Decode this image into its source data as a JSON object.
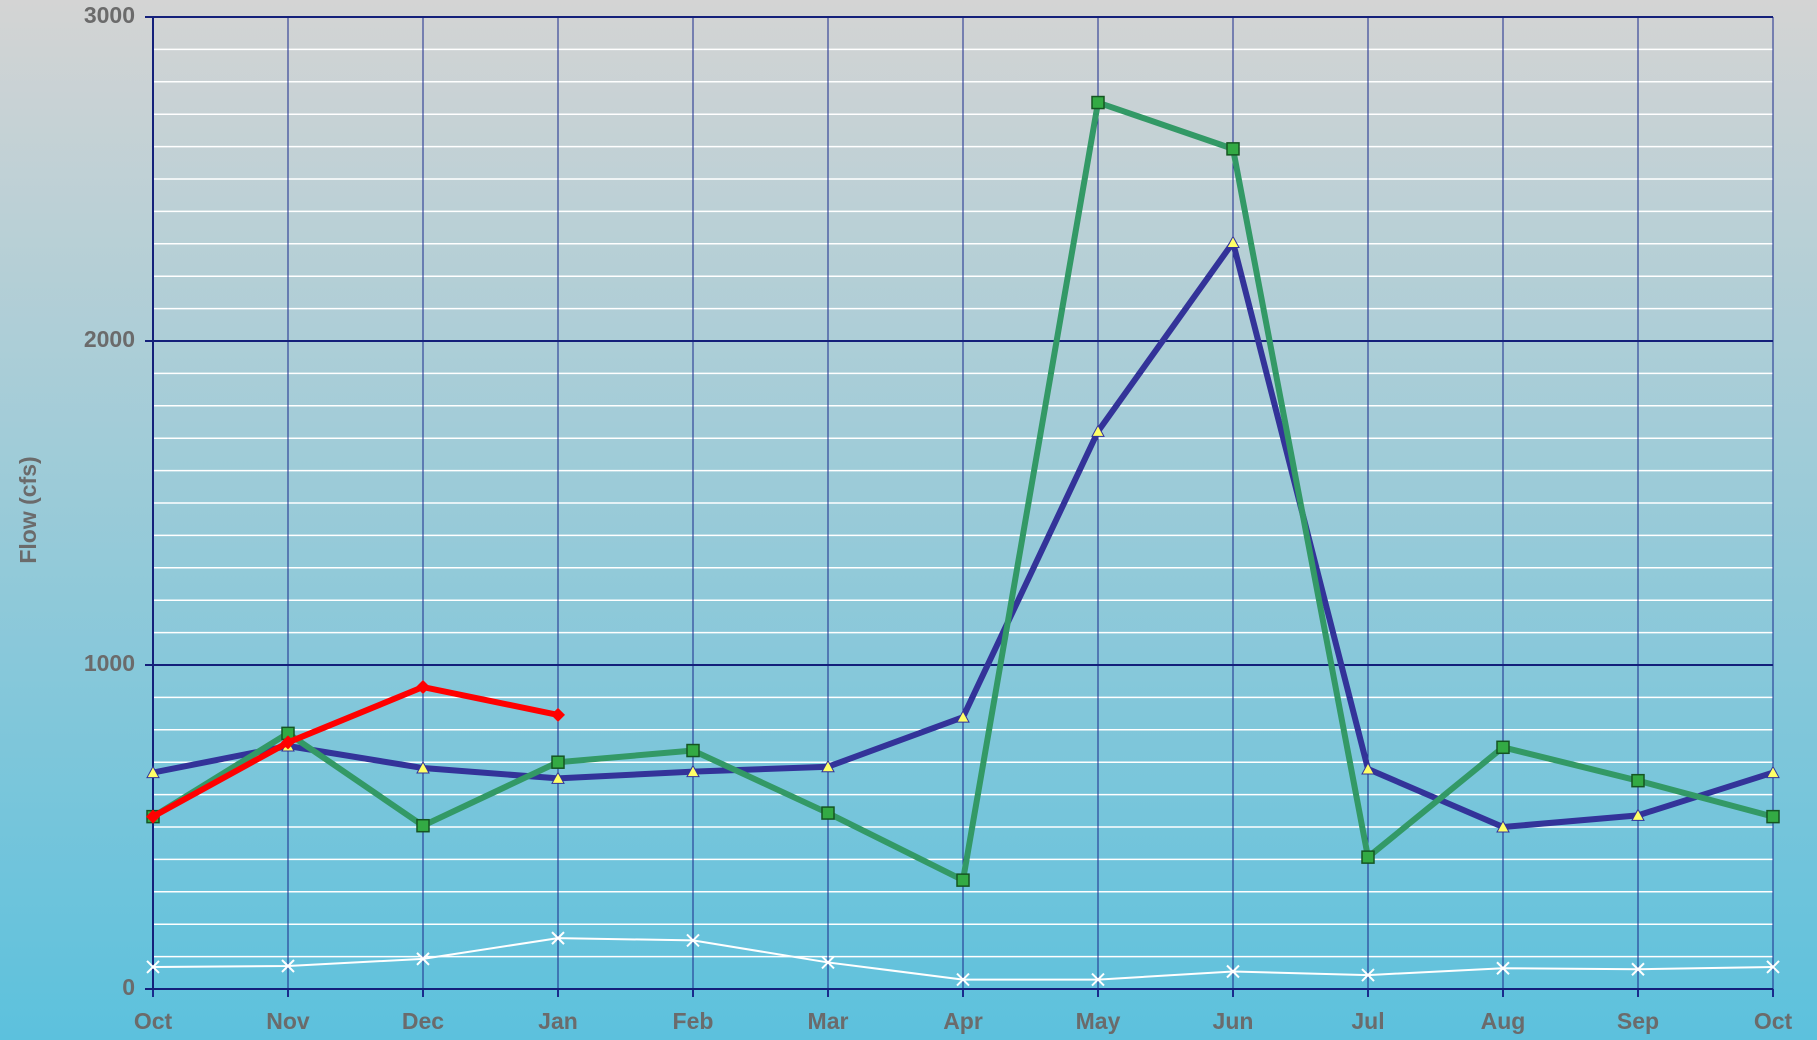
{
  "chart_data": {
    "type": "line",
    "y_label": "Flow (cfs)",
    "categories": [
      "Oct",
      "Nov",
      "Dec",
      "Jan",
      "Feb",
      "Mar",
      "Apr",
      "May",
      "Jun",
      "Jul",
      "Aug",
      "Sep",
      "Oct"
    ],
    "series": [
      {
        "color": "#333399",
        "marker": "triangle",
        "values": [
          668,
          750,
          682,
          650,
          671,
          686,
          839,
          1721,
          2304,
          679,
          500,
          536,
          668
        ]
      },
      {
        "color": "#339966",
        "marker": "square",
        "values": [
          532,
          789,
          504,
          700,
          736,
          543,
          336,
          2736,
          2593,
          407,
          746,
          643,
          532
        ]
      },
      {
        "color": "#ff0000",
        "marker": "diamond",
        "values": [
          532,
          761,
          932,
          846,
          null,
          null,
          null,
          null,
          null,
          null,
          null,
          null,
          null
        ]
      },
      {
        "color": "#ffffff",
        "marker": "x",
        "values": [
          68,
          71,
          93,
          157,
          150,
          82,
          29,
          29,
          54,
          43,
          64,
          61,
          68
        ]
      }
    ],
    "ylim": [
      0,
      3000
    ],
    "yticks": [
      0,
      1000,
      2000,
      3000
    ],
    "minor_yticks": [
      100,
      200,
      300,
      400,
      500,
      600,
      700,
      800,
      900,
      1100,
      1200,
      1300,
      1400,
      1500,
      1600,
      1700,
      1800,
      1900,
      2100,
      2200,
      2300,
      2400,
      2500,
      2600,
      2700,
      2800,
      2900
    ],
    "grid": true
  }
}
